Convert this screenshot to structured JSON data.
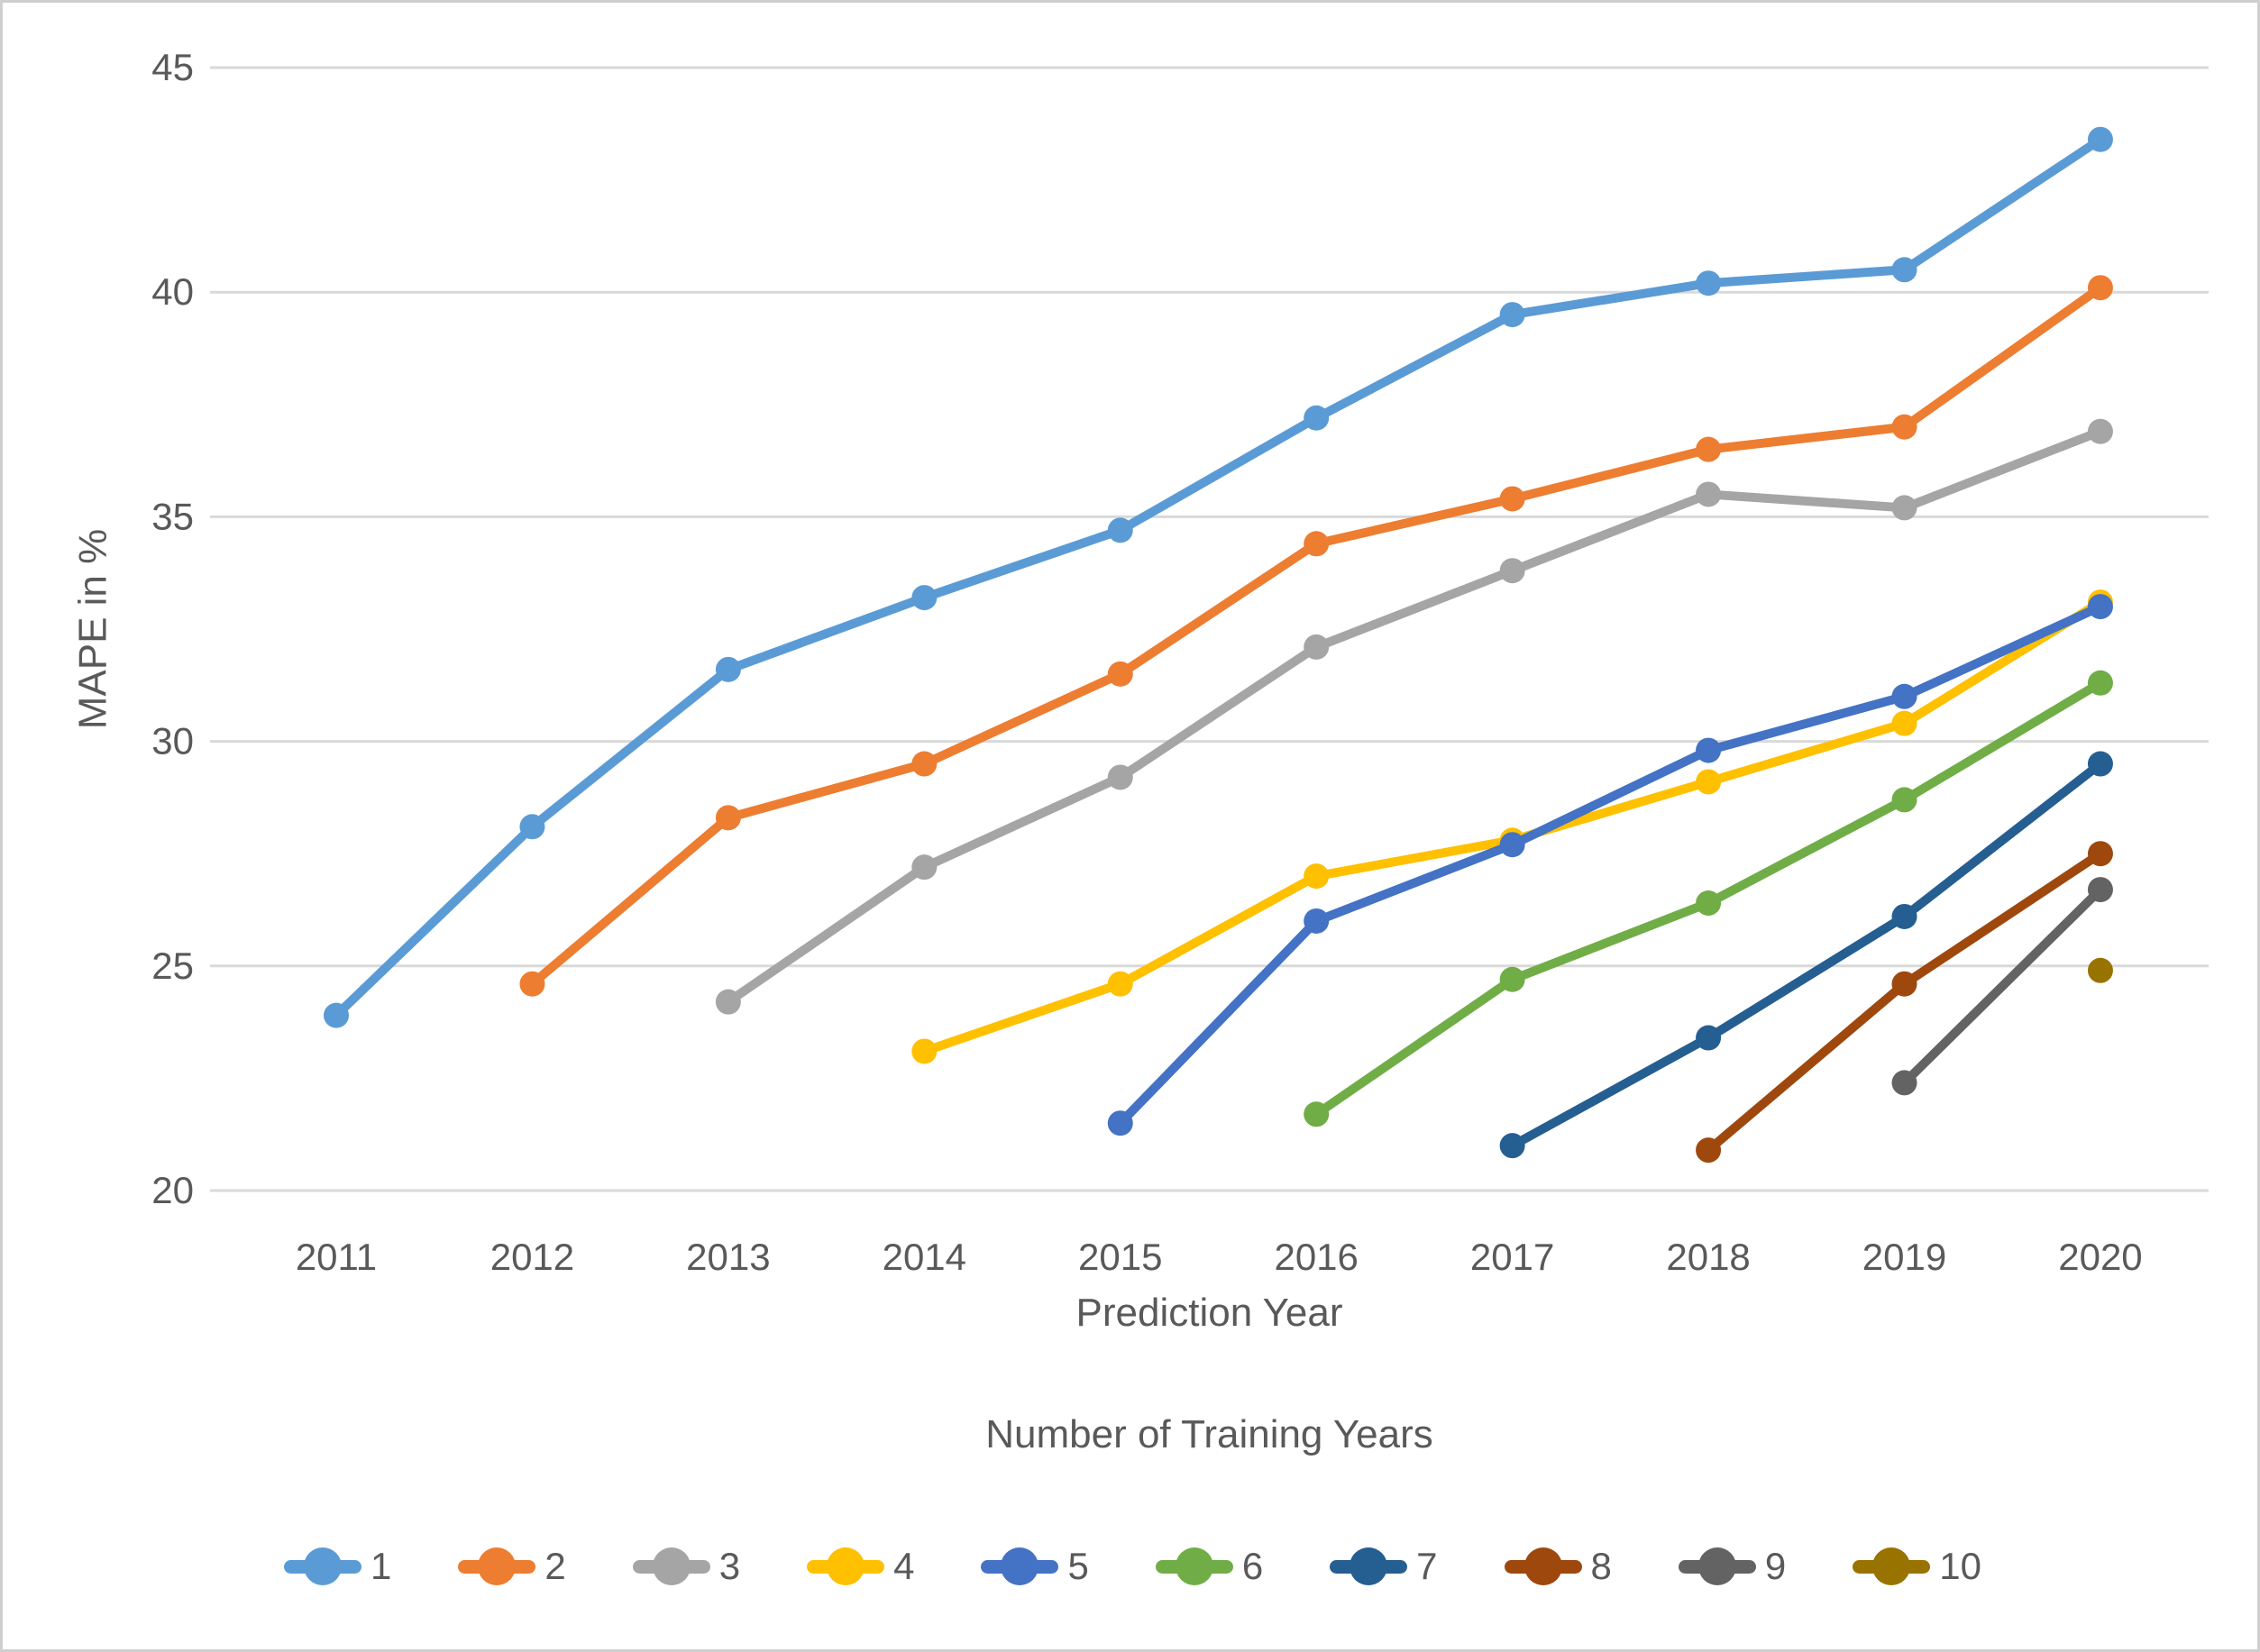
{
  "figure": {
    "background": "#ffffff",
    "border_color": "#cfcfcf",
    "text_color": "#595959"
  },
  "chart_data": {
    "type": "line",
    "title": "",
    "xlabel": "Prediction Year",
    "ylabel": "MAPE in %",
    "legend_title": "Number of Training Years",
    "legend_position": "bottom",
    "grid": "horizontal",
    "gridline_color": "#D9D9D9",
    "x_categories": [
      "2011",
      "2012",
      "2013",
      "2014",
      "2015",
      "2016",
      "2017",
      "2018",
      "2019",
      "2020"
    ],
    "ylim": [
      20,
      46
    ],
    "yticks": [
      20,
      25,
      30,
      35,
      40,
      45
    ],
    "marker_style": "filled-circle",
    "series": [
      {
        "name": "1",
        "color": "#5B9BD5",
        "start_year": "2011",
        "values": [
          23.9,
          28.1,
          31.6,
          33.2,
          34.7,
          37.2,
          39.5,
          40.2,
          40.5,
          43.4
        ]
      },
      {
        "name": "2",
        "color": "#ED7D31",
        "start_year": "2012",
        "values": [
          24.6,
          28.3,
          29.5,
          31.5,
          34.4,
          35.4,
          36.5,
          37.0,
          40.1
        ]
      },
      {
        "name": "3",
        "color": "#A5A5A5",
        "start_year": "2013",
        "values": [
          24.2,
          27.2,
          29.2,
          32.1,
          33.8,
          35.5,
          35.2,
          36.9
        ]
      },
      {
        "name": "4",
        "color": "#FFC000",
        "start_year": "2014",
        "values": [
          23.1,
          24.6,
          27.0,
          27.8,
          29.1,
          30.4,
          33.1
        ]
      },
      {
        "name": "5",
        "color": "#4472C4",
        "start_year": "2015",
        "values": [
          21.5,
          26.0,
          27.7,
          29.8,
          31.0,
          33.0
        ]
      },
      {
        "name": "6",
        "color": "#70AD47",
        "start_year": "2016",
        "values": [
          21.7,
          24.7,
          26.4,
          28.7,
          31.3
        ]
      },
      {
        "name": "7",
        "color": "#255E91",
        "start_year": "2017",
        "values": [
          21.0,
          23.4,
          26.1,
          29.5
        ]
      },
      {
        "name": "8",
        "color": "#9E480E",
        "start_year": "2018",
        "values": [
          20.9,
          24.6,
          27.5
        ]
      },
      {
        "name": "9",
        "color": "#636363",
        "start_year": "2019",
        "values": [
          22.4,
          26.7
        ]
      },
      {
        "name": "10",
        "color": "#997300",
        "start_year": "2020",
        "values": [
          24.9
        ]
      }
    ]
  }
}
